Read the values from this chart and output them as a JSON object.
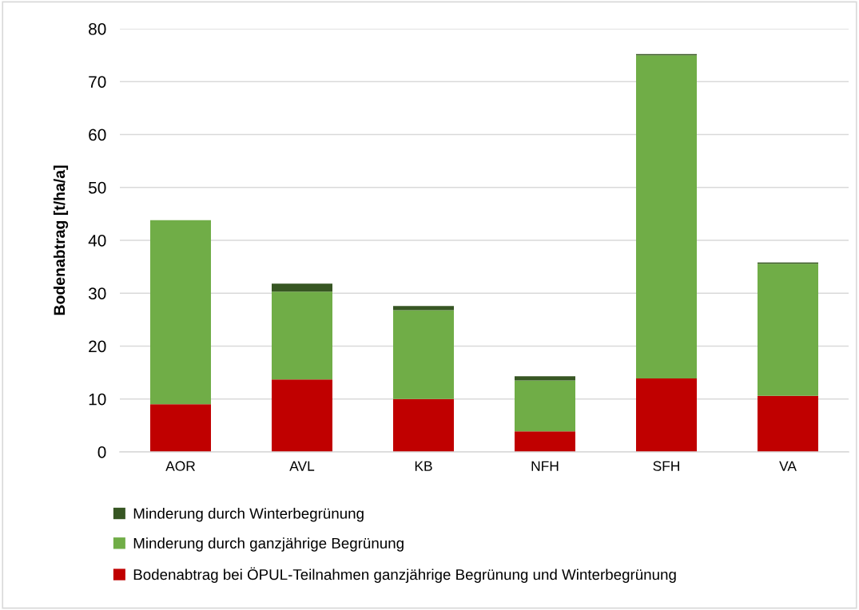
{
  "chart_data": {
    "type": "bar",
    "stacked": true,
    "ylabel": "Bodenabtrag [t/ha/a]",
    "categories": [
      "AOR",
      "AVL",
      "KB",
      "NFH",
      "SFH",
      "VA"
    ],
    "series": [
      {
        "name": "Bodenabtrag bei ÖPUL-Teilnahmen ganzjährige Begrünung und Winterbegrünung",
        "color": "#c00000",
        "values": [
          9.0,
          13.7,
          10.0,
          3.9,
          13.9,
          10.6
        ]
      },
      {
        "name": "Minderung durch ganzjährige Begrünung",
        "color": "#70ad47",
        "values": [
          34.8,
          16.6,
          16.8,
          9.6,
          61.1,
          25.0
        ]
      },
      {
        "name": "Minderung durch Winterbegrünung",
        "color": "#375623",
        "values": [
          null,
          1.5,
          0.8,
          0.8,
          0.2,
          0.2
        ]
      }
    ],
    "ylim": [
      0,
      80
    ],
    "yticks": [
      0,
      10,
      20,
      30,
      40,
      50,
      60,
      70,
      80
    ],
    "grid": "y",
    "legend": "bottom"
  }
}
